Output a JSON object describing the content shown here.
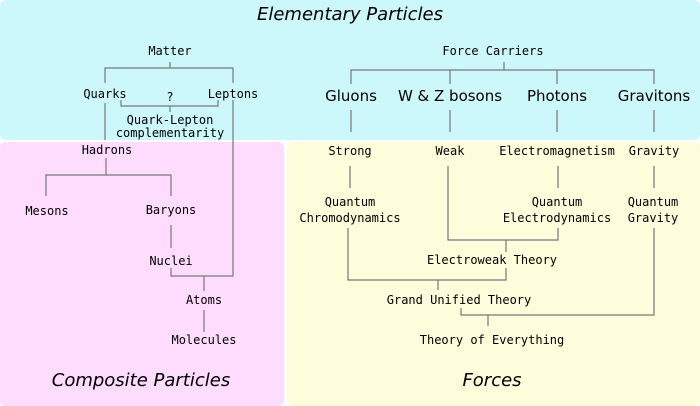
{
  "colors": {
    "elementary_bg": "#ccf8fc",
    "composite_bg": "#fddcfd",
    "forces_bg": "#fdfddc",
    "line": "#777777"
  },
  "sections": {
    "elementary": "Elementary Particles",
    "composite": "Composite Particles",
    "forces": "Forces"
  },
  "matter": {
    "root": "Matter",
    "quarks": "Quarks",
    "leptons": "Leptons",
    "unknown": "?",
    "qlc_line1": "Quark-Lepton",
    "qlc_line2": "complementarity",
    "hadrons": "Hadrons",
    "mesons": "Mesons",
    "baryons": "Baryons",
    "nuclei": "Nuclei",
    "atoms": "Atoms",
    "molecules": "Molecules"
  },
  "force_carriers": {
    "root": "Force Carriers",
    "items": [
      "Gluons",
      "W & Z bosons",
      "Photons",
      "Gravitons"
    ]
  },
  "forces": {
    "strong": "Strong",
    "weak": "Weak",
    "em": "Electromagnetism",
    "gravity": "Gravity",
    "qcd_line1": "Quantum",
    "qcd_line2": "Chromodynamics",
    "qed_line1": "Quantum",
    "qed_line2": "Electrodynamics",
    "qg_line1": "Quantum",
    "qg_line2": "Gravity",
    "electroweak": "Electroweak Theory",
    "gut": "Grand Unified Theory",
    "toe": "Theory of Everything"
  }
}
